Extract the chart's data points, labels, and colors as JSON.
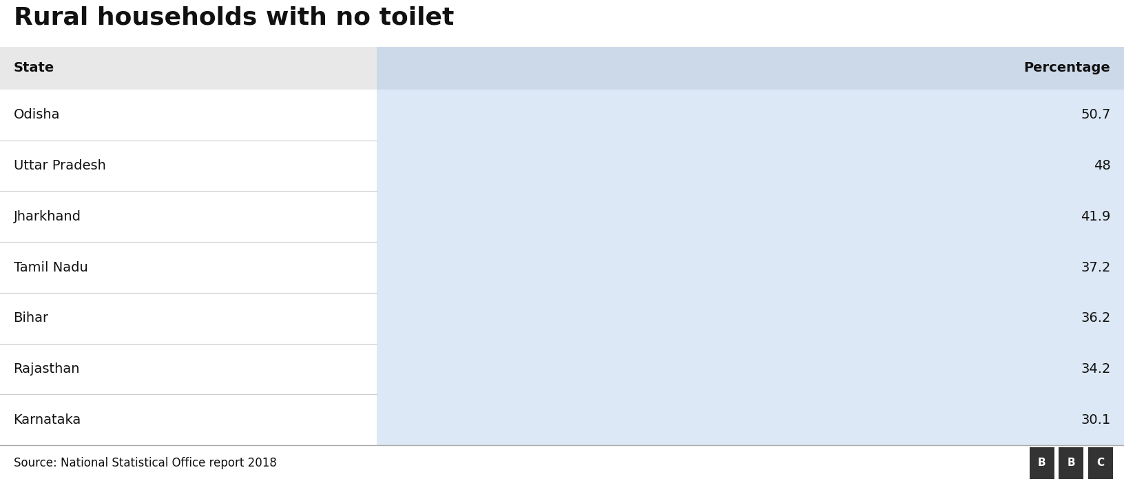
{
  "title": "Rural households with no toilet",
  "col1_header": "State",
  "col2_header": "Percentage",
  "rows": [
    {
      "state": "Odisha",
      "value": "50.7"
    },
    {
      "state": "Uttar Pradesh",
      "value": "48"
    },
    {
      "state": "Jharkhand",
      "value": "41.9"
    },
    {
      "state": "Tamil Nadu",
      "value": "37.2"
    },
    {
      "state": "Bihar",
      "value": "36.2"
    },
    {
      "state": "Rajasthan",
      "value": "34.2"
    },
    {
      "state": "Karnataka",
      "value": "30.1"
    }
  ],
  "source_text": "Source: National Statistical Office report 2018",
  "bbc_letters": [
    "B",
    "B",
    "C"
  ],
  "title_fontsize": 26,
  "header_fontsize": 14,
  "cell_fontsize": 14,
  "source_fontsize": 12,
  "col_split": 0.335,
  "header_bg_left": "#e8e8e8",
  "header_bg_right": "#ccd9e8",
  "row_bg_left": "#ffffff",
  "row_bg_right": "#dce8f5",
  "row_line_color": "#cccccc",
  "text_color": "#111111",
  "footer_line_color": "#aaaaaa",
  "fig_width": 16.32,
  "fig_height": 6.98,
  "dpi": 100
}
